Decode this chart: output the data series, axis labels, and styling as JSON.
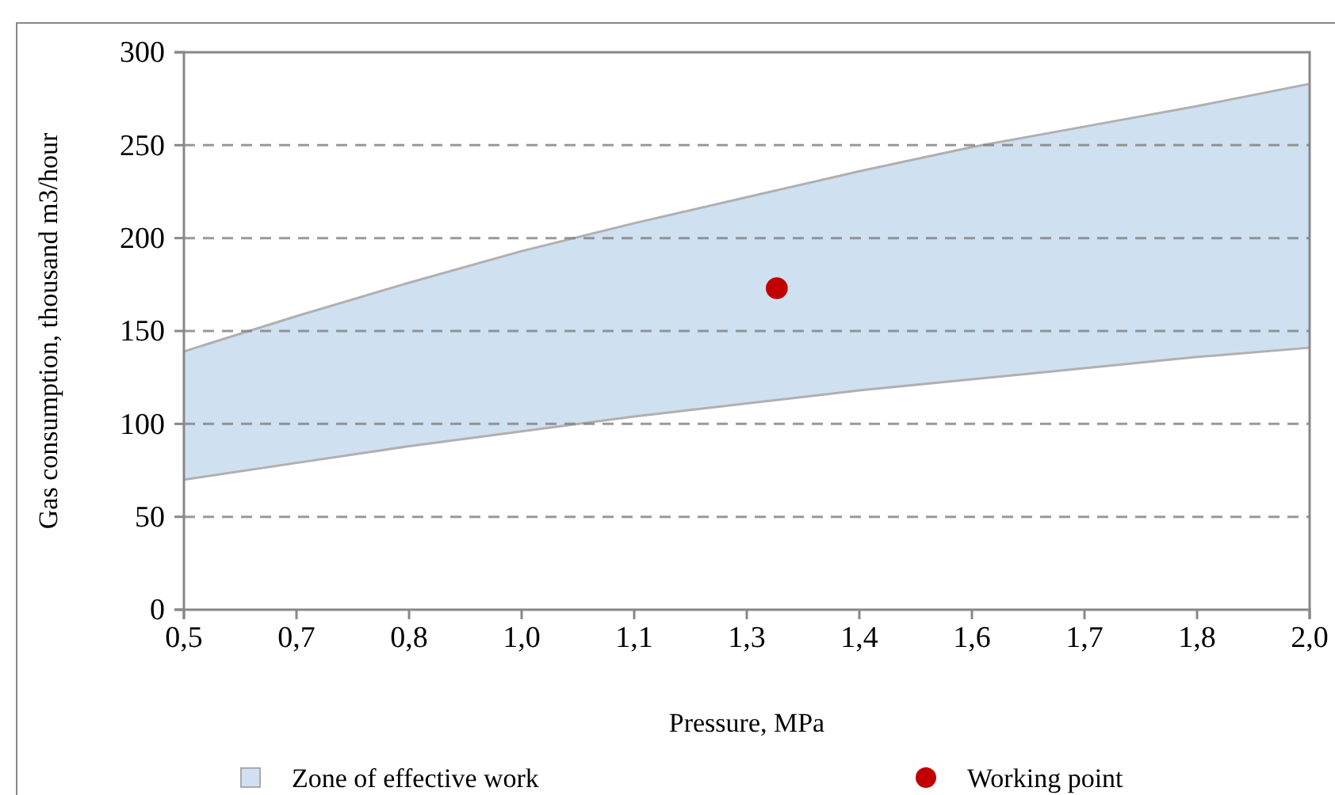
{
  "chart_data": {
    "type": "area",
    "xlabel": "Pressure, MPa",
    "ylabel": "Gas consumption, thousand m3/hour",
    "xlim": [
      0.5,
      2.0
    ],
    "xticks": [
      {
        "value": 0.5,
        "label": "0,5"
      },
      {
        "value": 0.65,
        "label": "0,7"
      },
      {
        "value": 0.8,
        "label": "0,8"
      },
      {
        "value": 0.95,
        "label": "1,0"
      },
      {
        "value": 1.1,
        "label": "1,1"
      },
      {
        "value": 1.25,
        "label": "1,3"
      },
      {
        "value": 1.4,
        "label": "1,4"
      },
      {
        "value": 1.55,
        "label": "1,6"
      },
      {
        "value": 1.7,
        "label": "1,7"
      },
      {
        "value": 1.85,
        "label": "1,8"
      },
      {
        "value": 2.0,
        "label": "2,0"
      }
    ],
    "ylim": [
      0,
      300
    ],
    "yticks": [
      0,
      50,
      100,
      150,
      200,
      250,
      300
    ],
    "grid": "y",
    "legend": "bottom",
    "series": [
      {
        "name": "Zone of effective work",
        "color": "#cfe0f1",
        "x": [
          0.5,
          0.65,
          0.8,
          0.95,
          1.1,
          1.25,
          1.4,
          1.55,
          1.7,
          1.85,
          2.0
        ],
        "values": [
          139,
          158,
          176,
          193,
          208,
          222,
          236,
          249,
          260,
          271,
          283
        ]
      },
      {
        "color": "#ffffff",
        "x": [
          0.5,
          0.65,
          0.8,
          0.95,
          1.1,
          1.25,
          1.4,
          1.55,
          1.7,
          1.85,
          2.0
        ],
        "values": [
          70,
          79,
          88,
          96,
          104,
          111,
          118,
          124,
          130,
          136,
          141
        ]
      },
      {
        "name": "Working point",
        "type": "scatter",
        "color": "#c00000",
        "marker": "circle",
        "x": [
          1.29
        ],
        "values": [
          173
        ]
      }
    ]
  }
}
